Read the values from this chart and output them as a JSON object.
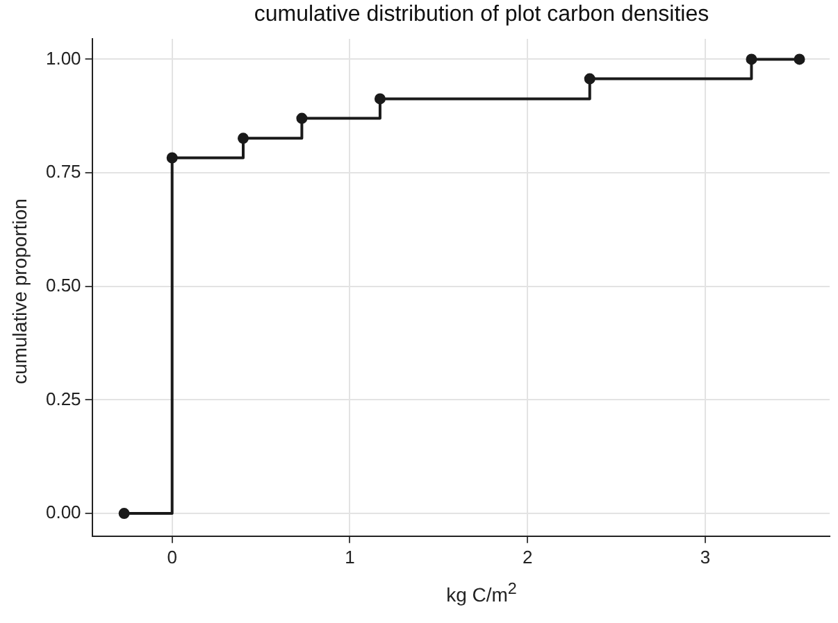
{
  "chart_data": {
    "type": "step",
    "title": "cumulative distribution of plot carbon densities",
    "xlabel": "kg C/m$^{2}$",
    "ylabel": "cumulative proportion",
    "x": [
      -0.27,
      0,
      0.4,
      0.73,
      1.17,
      2.35,
      3.26,
      3.53
    ],
    "series": [
      {
        "color": "#1a1a1a",
        "values": [
          0,
          0.783,
          0.826,
          0.87,
          0.913,
          0.957,
          1.0,
          1.0
        ]
      }
    ],
    "xlim": [
      -0.45,
      3.7
    ],
    "xticks": [
      0,
      1,
      2,
      3
    ],
    "ylim": [
      -0.05,
      1.045
    ],
    "yticks": [
      {
        "value": 0,
        "label": "0.00"
      },
      {
        "value": 0.25,
        "label": "0.25"
      },
      {
        "value": 0.5,
        "label": "0.50"
      },
      {
        "value": 0.75,
        "label": "0.75"
      },
      {
        "value": 1,
        "label": "1.00"
      }
    ],
    "grid": true,
    "legend": false,
    "marker": "circle",
    "line_style": "solid"
  }
}
